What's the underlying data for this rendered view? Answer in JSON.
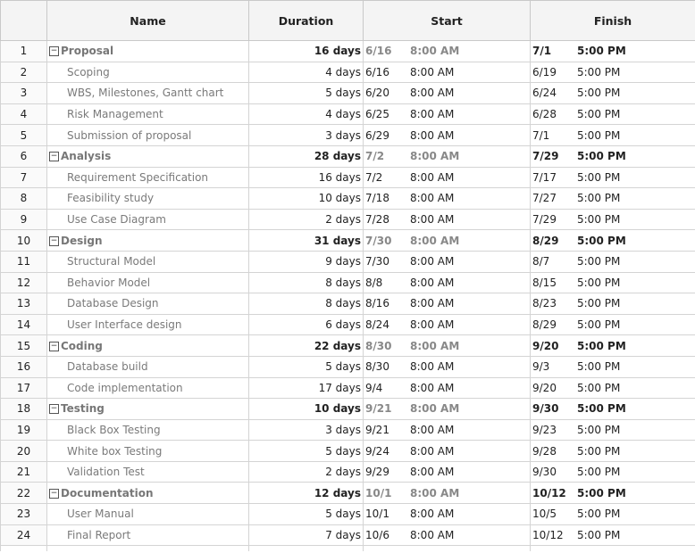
{
  "columns": {
    "id": "",
    "name": "Name",
    "duration": "Duration",
    "start": "Start",
    "finish": "Finish"
  },
  "tasks": [
    {
      "id": "1",
      "name": "Proposal",
      "summary": true,
      "duration": "16 days",
      "start_date": "6/16",
      "start_time": "8:00 AM",
      "finish_date": "7/1",
      "finish_time": "5:00 PM"
    },
    {
      "id": "2",
      "name": "Scoping",
      "summary": false,
      "duration": "4 days",
      "start_date": "6/16",
      "start_time": "8:00 AM",
      "finish_date": "6/19",
      "finish_time": "5:00 PM"
    },
    {
      "id": "3",
      "name": "WBS, Milestones, Gantt chart",
      "summary": false,
      "duration": "5 days",
      "start_date": "6/20",
      "start_time": "8:00 AM",
      "finish_date": "6/24",
      "finish_time": "5:00 PM"
    },
    {
      "id": "4",
      "name": "Risk Management",
      "summary": false,
      "duration": "4 days",
      "start_date": "6/25",
      "start_time": "8:00 AM",
      "finish_date": "6/28",
      "finish_time": "5:00 PM"
    },
    {
      "id": "5",
      "name": "Submission of proposal",
      "summary": false,
      "duration": "3 days",
      "start_date": "6/29",
      "start_time": "8:00 AM",
      "finish_date": "7/1",
      "finish_time": "5:00 PM"
    },
    {
      "id": "6",
      "name": "Analysis",
      "summary": true,
      "duration": "28 days",
      "start_date": "7/2",
      "start_time": "8:00 AM",
      "finish_date": "7/29",
      "finish_time": "5:00 PM"
    },
    {
      "id": "7",
      "name": "Requirement Specification",
      "summary": false,
      "duration": "16 days",
      "start_date": "7/2",
      "start_time": "8:00 AM",
      "finish_date": "7/17",
      "finish_time": "5:00 PM"
    },
    {
      "id": "8",
      "name": "Feasibility study",
      "summary": false,
      "duration": "10 days",
      "start_date": "7/18",
      "start_time": "8:00 AM",
      "finish_date": "7/27",
      "finish_time": "5:00 PM"
    },
    {
      "id": "9",
      "name": "Use Case Diagram",
      "summary": false,
      "duration": "2 days",
      "start_date": "7/28",
      "start_time": "8:00 AM",
      "finish_date": "7/29",
      "finish_time": "5:00 PM"
    },
    {
      "id": "10",
      "name": "Design",
      "summary": true,
      "duration": "31 days",
      "start_date": "7/30",
      "start_time": "8:00 AM",
      "finish_date": "8/29",
      "finish_time": "5:00 PM"
    },
    {
      "id": "11",
      "name": "Structural Model",
      "summary": false,
      "duration": "9 days",
      "start_date": "7/30",
      "start_time": "8:00 AM",
      "finish_date": "8/7",
      "finish_time": "5:00 PM"
    },
    {
      "id": "12",
      "name": "Behavior Model",
      "summary": false,
      "duration": "8 days",
      "start_date": "8/8",
      "start_time": "8:00 AM",
      "finish_date": "8/15",
      "finish_time": "5:00 PM"
    },
    {
      "id": "13",
      "name": "Database Design",
      "summary": false,
      "duration": "8 days",
      "start_date": "8/16",
      "start_time": "8:00 AM",
      "finish_date": "8/23",
      "finish_time": "5:00 PM"
    },
    {
      "id": "14",
      "name": "User Interface design",
      "summary": false,
      "duration": "6 days",
      "start_date": "8/24",
      "start_time": "8:00 AM",
      "finish_date": "8/29",
      "finish_time": "5:00 PM"
    },
    {
      "id": "15",
      "name": "Coding",
      "summary": true,
      "duration": "22 days",
      "start_date": "8/30",
      "start_time": "8:00 AM",
      "finish_date": "9/20",
      "finish_time": "5:00 PM"
    },
    {
      "id": "16",
      "name": "Database build",
      "summary": false,
      "duration": "5 days",
      "start_date": "8/30",
      "start_time": "8:00 AM",
      "finish_date": "9/3",
      "finish_time": "5:00 PM"
    },
    {
      "id": "17",
      "name": "Code implementation",
      "summary": false,
      "duration": "17 days",
      "start_date": "9/4",
      "start_time": "8:00 AM",
      "finish_date": "9/20",
      "finish_time": "5:00 PM"
    },
    {
      "id": "18",
      "name": "Testing",
      "summary": true,
      "duration": "10 days",
      "start_date": "9/21",
      "start_time": "8:00 AM",
      "finish_date": "9/30",
      "finish_time": "5:00 PM"
    },
    {
      "id": "19",
      "name": "Black Box Testing",
      "summary": false,
      "duration": "3 days",
      "start_date": "9/21",
      "start_time": "8:00 AM",
      "finish_date": "9/23",
      "finish_time": "5:00 PM"
    },
    {
      "id": "20",
      "name": "White  box Testing",
      "summary": false,
      "duration": "5 days",
      "start_date": "9/24",
      "start_time": "8:00 AM",
      "finish_date": "9/28",
      "finish_time": "5:00 PM"
    },
    {
      "id": "21",
      "name": "Validation Test",
      "summary": false,
      "duration": "2 days",
      "start_date": "9/29",
      "start_time": "8:00 AM",
      "finish_date": "9/30",
      "finish_time": "5:00 PM"
    },
    {
      "id": "22",
      "name": "Documentation",
      "summary": true,
      "duration": "12 days",
      "start_date": "10/1",
      "start_time": "8:00 AM",
      "finish_date": "10/12",
      "finish_time": "5:00 PM"
    },
    {
      "id": "23",
      "name": "User Manual",
      "summary": false,
      "duration": "5 days",
      "start_date": "10/1",
      "start_time": "8:00 AM",
      "finish_date": "10/5",
      "finish_time": "5:00 PM"
    },
    {
      "id": "24",
      "name": "Final Report",
      "summary": false,
      "duration": "7 days",
      "start_date": "10/6",
      "start_time": "8:00 AM",
      "finish_date": "10/12",
      "finish_time": "5:00 PM"
    }
  ],
  "icons": {
    "collapse": "collapse-toggle-icon"
  },
  "colors": {
    "header_bg": "#f4f4f4",
    "grid_line": "#d4d4d4",
    "subtask_text": "#7a7a7a"
  }
}
